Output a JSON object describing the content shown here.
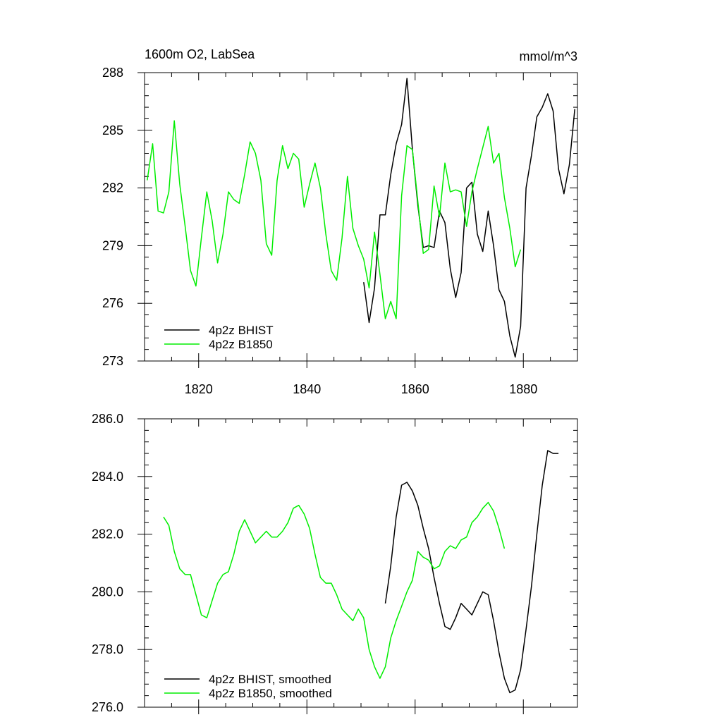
{
  "chart_data": [
    {
      "type": "line",
      "title": "1600m O2, LabSea",
      "units": "mmol/m^3",
      "xlabel": "",
      "ylabel": "",
      "xlim": [
        1810,
        1890
      ],
      "ylim": [
        273,
        288
      ],
      "yticks": [
        "273",
        "276",
        "279",
        "282",
        "285",
        "288"
      ],
      "xticks": [
        "1820",
        "1840",
        "1860",
        "1880"
      ],
      "legend_position": "bottom-left",
      "series": [
        {
          "name": "4p2z BHIST",
          "color": "#000000",
          "x": [
            1850.5,
            1851.5,
            1852.5,
            1853.5,
            1854.5,
            1855.5,
            1856.5,
            1857.5,
            1858.5,
            1859.5,
            1860.5,
            1861.5,
            1862.5,
            1863.5,
            1864.5,
            1865.5,
            1866.5,
            1867.5,
            1868.5,
            1869.5,
            1870.5,
            1871.5,
            1872.5,
            1873.5,
            1874.5,
            1875.5,
            1876.5,
            1877.5,
            1878.5,
            1879.5,
            1880.5,
            1881.5,
            1882.5,
            1883.5,
            1884.5,
            1885.5,
            1886.5,
            1887.5,
            1888.5,
            1889.5
          ],
          "y": [
            277.1,
            275.0,
            276.8,
            280.6,
            280.6,
            282.7,
            284.3,
            285.3,
            287.7,
            284.0,
            281.1,
            278.9,
            279.0,
            278.9,
            280.8,
            280.2,
            277.8,
            276.3,
            277.6,
            282.0,
            282.3,
            279.6,
            278.7,
            280.8,
            279.0,
            276.7,
            276.1,
            274.3,
            273.2,
            274.8,
            282.0,
            283.7,
            285.7,
            286.2,
            286.9,
            286.0,
            283.0,
            281.7,
            283.2,
            286.1
          ]
        },
        {
          "name": "4p2z B1850",
          "color": "#00ee00",
          "x": [
            1810.5,
            1811.5,
            1812.5,
            1813.5,
            1814.5,
            1815.5,
            1816.5,
            1817.5,
            1818.5,
            1819.5,
            1820.5,
            1821.5,
            1822.5,
            1823.5,
            1824.5,
            1825.5,
            1826.5,
            1827.5,
            1828.5,
            1829.5,
            1830.5,
            1831.5,
            1832.5,
            1833.5,
            1834.5,
            1835.5,
            1836.5,
            1837.5,
            1838.5,
            1839.5,
            1840.5,
            1841.5,
            1842.5,
            1843.5,
            1844.5,
            1845.5,
            1846.5,
            1847.5,
            1848.5,
            1849.5,
            1850.5,
            1851.5,
            1852.5,
            1853.5,
            1854.5,
            1855.5,
            1856.5,
            1857.5,
            1858.5,
            1859.5,
            1860.5,
            1861.5,
            1862.5,
            1863.5,
            1864.5,
            1865.5,
            1866.5,
            1867.5,
            1868.5,
            1869.5,
            1870.5,
            1871.5,
            1872.5,
            1873.5,
            1874.5,
            1875.5,
            1876.5,
            1877.5,
            1878.5,
            1879.5
          ],
          "y": [
            282.4,
            284.3,
            280.8,
            280.7,
            281.8,
            285.5,
            282.2,
            280.0,
            277.7,
            276.9,
            279.4,
            281.8,
            280.3,
            278.1,
            279.6,
            281.8,
            281.4,
            281.2,
            282.7,
            284.4,
            283.8,
            282.4,
            279.1,
            278.5,
            282.4,
            284.2,
            283.0,
            283.8,
            283.5,
            281.0,
            282.2,
            283.3,
            282.0,
            279.6,
            277.7,
            277.2,
            279.4,
            282.6,
            279.9,
            279.0,
            278.3,
            276.8,
            279.7,
            277.5,
            275.2,
            276.1,
            275.2,
            281.6,
            284.2,
            284.0,
            281.3,
            278.6,
            278.8,
            282.1,
            280.5,
            283.3,
            281.8,
            281.9,
            281.8,
            280.0,
            281.8,
            283.0,
            284.1,
            285.2,
            283.3,
            283.8,
            281.5,
            279.9,
            277.9,
            278.8
          ]
        }
      ]
    },
    {
      "type": "line",
      "title": "",
      "xlabel": "",
      "ylabel": "",
      "xlim": [
        1810,
        1890
      ],
      "ylim": [
        276,
        286
      ],
      "yticks": [
        "276.0",
        "278.0",
        "280.0",
        "282.0",
        "284.0",
        "286.0"
      ],
      "legend_position": "bottom-left",
      "series": [
        {
          "name": "4p2z BHIST, smoothed",
          "color": "#000000",
          "x": [
            1854.5,
            1855.5,
            1856.5,
            1857.5,
            1858.5,
            1859.5,
            1860.5,
            1861.5,
            1862.5,
            1863.5,
            1864.5,
            1865.5,
            1866.5,
            1867.5,
            1868.5,
            1869.5,
            1870.5,
            1871.5,
            1872.5,
            1873.5,
            1874.5,
            1875.5,
            1876.5,
            1877.5,
            1878.5,
            1879.5,
            1880.5,
            1881.5,
            1882.5,
            1883.5,
            1884.5,
            1885.5,
            1886.5
          ],
          "y": [
            279.6,
            280.9,
            282.6,
            283.7,
            283.8,
            283.5,
            283.0,
            282.2,
            281.5,
            280.5,
            279.6,
            278.8,
            278.7,
            279.1,
            279.6,
            279.4,
            279.2,
            279.6,
            280.0,
            279.9,
            279.0,
            277.9,
            277.0,
            276.5,
            276.6,
            277.3,
            278.7,
            280.2,
            282.0,
            283.7,
            284.9,
            284.8,
            284.8
          ]
        },
        {
          "name": "4p2z B1850, smoothed",
          "color": "#00ee00",
          "x": [
            1813.5,
            1814.5,
            1815.5,
            1816.5,
            1817.5,
            1818.5,
            1819.5,
            1820.5,
            1821.5,
            1822.5,
            1823.5,
            1824.5,
            1825.5,
            1826.5,
            1827.5,
            1828.5,
            1829.5,
            1830.5,
            1831.5,
            1832.5,
            1833.5,
            1834.5,
            1835.5,
            1836.5,
            1837.5,
            1838.5,
            1839.5,
            1840.5,
            1841.5,
            1842.5,
            1843.5,
            1844.5,
            1845.5,
            1846.5,
            1847.5,
            1848.5,
            1849.5,
            1850.5,
            1851.5,
            1852.5,
            1853.5,
            1854.5,
            1855.5,
            1856.5,
            1857.5,
            1858.5,
            1859.5,
            1860.5,
            1861.5,
            1862.5,
            1863.5,
            1864.5,
            1865.5,
            1866.5,
            1867.5,
            1868.5,
            1869.5,
            1870.5,
            1871.5,
            1872.5,
            1873.5,
            1874.5,
            1875.5,
            1876.5
          ],
          "y": [
            282.6,
            282.3,
            281.4,
            280.8,
            280.6,
            280.6,
            279.9,
            279.2,
            279.1,
            279.7,
            280.3,
            280.6,
            280.7,
            281.3,
            282.1,
            282.5,
            282.1,
            281.7,
            281.9,
            282.1,
            281.9,
            281.9,
            282.1,
            282.4,
            282.9,
            283.0,
            282.7,
            282.2,
            281.3,
            280.5,
            280.3,
            280.3,
            279.9,
            279.4,
            279.2,
            279.0,
            279.4,
            279.1,
            278.0,
            277.4,
            277.0,
            277.4,
            278.4,
            279.0,
            279.5,
            280.0,
            280.4,
            281.4,
            281.2,
            281.1,
            280.8,
            280.9,
            281.4,
            281.6,
            281.5,
            281.8,
            281.9,
            282.4,
            282.6,
            282.9,
            283.1,
            282.8,
            282.2,
            281.5
          ]
        }
      ]
    }
  ]
}
